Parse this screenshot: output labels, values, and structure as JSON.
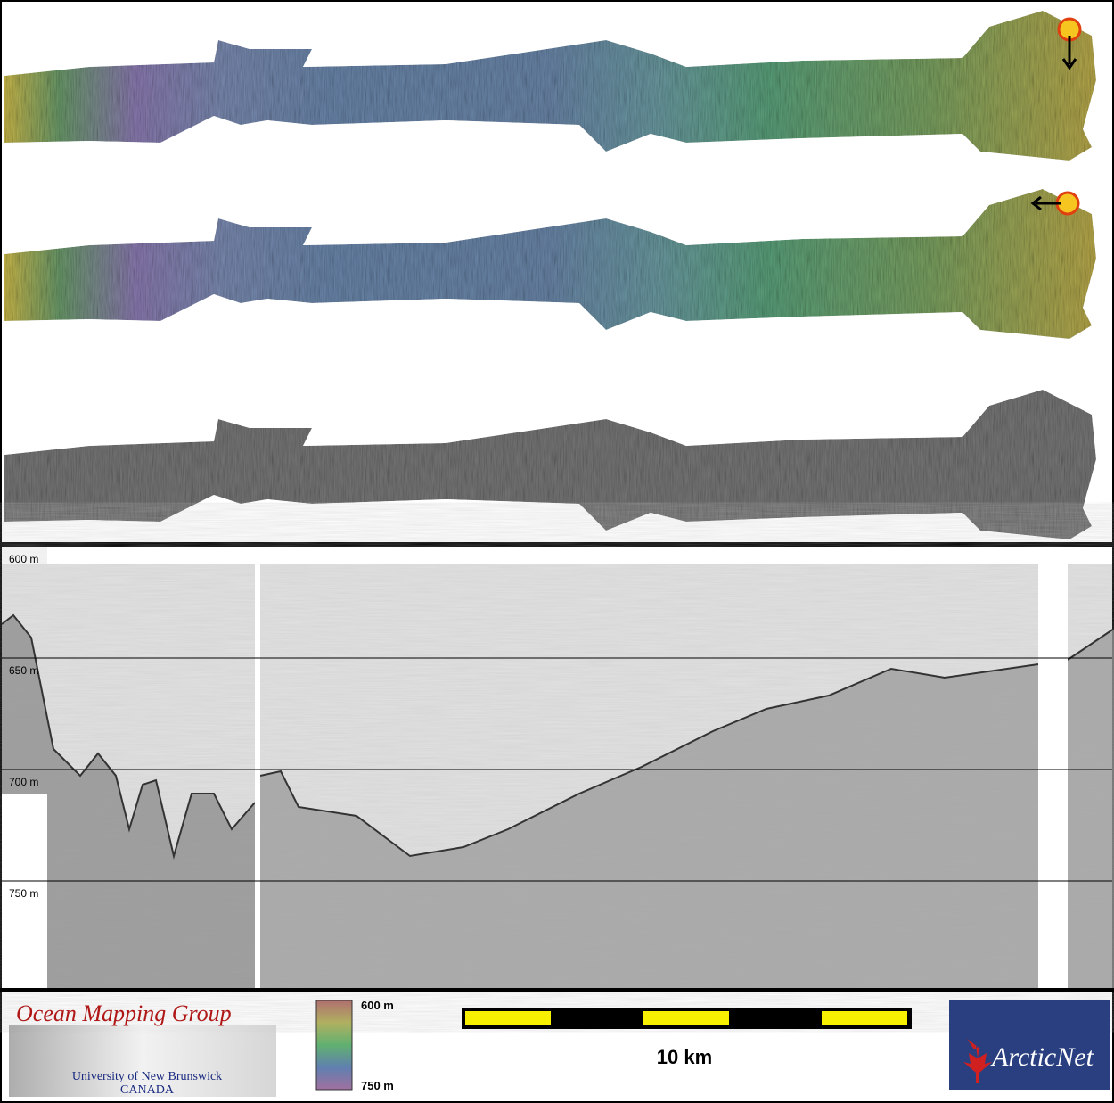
{
  "profile": {
    "depth_labels": [
      "600 m",
      "650 m",
      "700 m",
      "750 m"
    ]
  },
  "footer": {
    "logo_title": "Ocean Mapping Group",
    "logo_line1": "University of New Brunswick",
    "logo_line2": "CANADA",
    "colorbar": {
      "top_label": "600 m",
      "bottom_label": "750 m"
    },
    "scale_label": "10 km",
    "partner": "ArcticNet"
  }
}
